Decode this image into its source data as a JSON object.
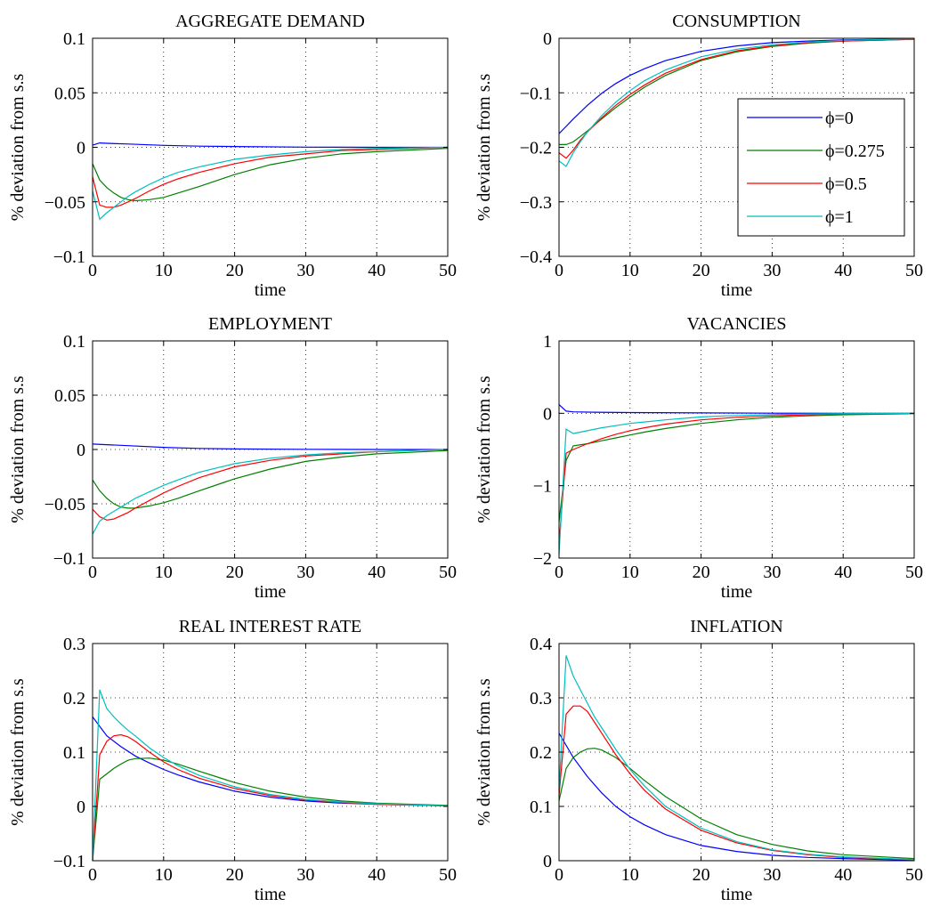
{
  "colors": {
    "phi0": "#0000ff",
    "phi0275": "#007f00",
    "phi05": "#ff0000",
    "phi1": "#00bfbf"
  },
  "legend_labels": [
    "ϕ=0",
    "ϕ=0.275",
    "ϕ=0.5",
    "ϕ=1"
  ],
  "chart_data": [
    {
      "type": "line",
      "title": "AGGREGATE DEMAND",
      "xlabel": "time",
      "ylabel": "% deviation from s.s",
      "xlim": [
        0,
        50
      ],
      "ylim": [
        -0.1,
        0.1
      ],
      "xticks": [
        0,
        10,
        20,
        30,
        40,
        50
      ],
      "yticks": [
        -0.1,
        -0.05,
        0,
        0.05,
        0.1
      ],
      "ytick_labels": [
        "−0.1",
        "−0.05",
        "0",
        "0.05",
        "0.1"
      ],
      "grid": true,
      "series": [
        {
          "name": "ϕ=0",
          "x": [
            0,
            1,
            2,
            5,
            10,
            15,
            20,
            30,
            40,
            50
          ],
          "y": [
            0.002,
            0.004,
            0.0037,
            0.003,
            0.0018,
            0.0011,
            0.0007,
            0.0002,
            0.0,
            0.0
          ]
        },
        {
          "name": "ϕ=0.275",
          "x": [
            0,
            1,
            2,
            3,
            4,
            5,
            6,
            8,
            10,
            12,
            15,
            20,
            25,
            30,
            35,
            40,
            50
          ],
          "y": [
            -0.015,
            -0.03,
            -0.037,
            -0.042,
            -0.046,
            -0.048,
            -0.049,
            -0.048,
            -0.046,
            -0.042,
            -0.036,
            -0.025,
            -0.016,
            -0.01,
            -0.006,
            -0.004,
            -0.001
          ]
        },
        {
          "name": "ϕ=0.5",
          "x": [
            0,
            1,
            2,
            3,
            4,
            5,
            6,
            8,
            10,
            12,
            15,
            20,
            25,
            30,
            35,
            40,
            50
          ],
          "y": [
            -0.027,
            -0.053,
            -0.055,
            -0.055,
            -0.053,
            -0.05,
            -0.047,
            -0.04,
            -0.034,
            -0.029,
            -0.023,
            -0.015,
            -0.009,
            -0.006,
            -0.003,
            -0.002,
            0.0
          ]
        },
        {
          "name": "ϕ=1",
          "x": [
            0,
            1,
            2,
            3,
            4,
            5,
            6,
            8,
            10,
            12,
            15,
            20,
            25,
            30,
            35,
            40,
            50
          ],
          "y": [
            -0.04,
            -0.066,
            -0.06,
            -0.055,
            -0.05,
            -0.045,
            -0.041,
            -0.034,
            -0.028,
            -0.023,
            -0.018,
            -0.011,
            -0.007,
            -0.004,
            -0.002,
            -0.001,
            0.0
          ]
        }
      ]
    },
    {
      "type": "line",
      "title": "CONSUMPTION",
      "xlabel": "time",
      "ylabel": "% deviation from s.s",
      "xlim": [
        0,
        50
      ],
      "ylim": [
        -0.4,
        0
      ],
      "xticks": [
        0,
        10,
        20,
        30,
        40,
        50
      ],
      "yticks": [
        -0.4,
        -0.3,
        -0.2,
        -0.1,
        0
      ],
      "ytick_labels": [
        "−0.4",
        "−0.3",
        "−0.2",
        "−0.1",
        "0"
      ],
      "grid": true,
      "legend": "right",
      "series": [
        {
          "name": "ϕ=0",
          "x": [
            0,
            2,
            4,
            6,
            8,
            10,
            12,
            15,
            20,
            25,
            30,
            35,
            40,
            50
          ],
          "y": [
            -0.175,
            -0.148,
            -0.123,
            -0.101,
            -0.083,
            -0.068,
            -0.056,
            -0.041,
            -0.024,
            -0.014,
            -0.008,
            -0.005,
            -0.003,
            -0.001
          ]
        },
        {
          "name": "ϕ=0.275",
          "x": [
            0,
            1,
            2,
            3,
            4,
            6,
            8,
            10,
            12,
            15,
            20,
            25,
            30,
            35,
            40,
            50
          ],
          "y": [
            -0.195,
            -0.195,
            -0.19,
            -0.18,
            -0.17,
            -0.148,
            -0.127,
            -0.108,
            -0.09,
            -0.068,
            -0.041,
            -0.025,
            -0.015,
            -0.009,
            -0.005,
            -0.002
          ]
        },
        {
          "name": "ϕ=0.5",
          "x": [
            0,
            1,
            2,
            3,
            4,
            6,
            8,
            10,
            12,
            15,
            20,
            25,
            30,
            35,
            40,
            50
          ],
          "y": [
            -0.21,
            -0.22,
            -0.205,
            -0.187,
            -0.172,
            -0.146,
            -0.123,
            -0.103,
            -0.086,
            -0.064,
            -0.039,
            -0.023,
            -0.014,
            -0.008,
            -0.005,
            -0.002
          ]
        },
        {
          "name": "ϕ=1",
          "x": [
            0,
            1,
            2,
            3,
            4,
            6,
            8,
            10,
            12,
            15,
            20,
            25,
            30,
            35,
            40,
            50
          ],
          "y": [
            -0.225,
            -0.235,
            -0.21,
            -0.19,
            -0.172,
            -0.142,
            -0.117,
            -0.096,
            -0.078,
            -0.058,
            -0.034,
            -0.02,
            -0.012,
            -0.007,
            -0.004,
            -0.001
          ]
        }
      ]
    },
    {
      "type": "line",
      "title": "EMPLOYMENT",
      "xlabel": "time",
      "ylabel": "% deviation from s.s",
      "xlim": [
        0,
        50
      ],
      "ylim": [
        -0.1,
        0.1
      ],
      "xticks": [
        0,
        10,
        20,
        30,
        40,
        50
      ],
      "yticks": [
        -0.1,
        -0.05,
        0,
        0.05,
        0.1
      ],
      "ytick_labels": [
        "−0.1",
        "−0.05",
        "0",
        "0.05",
        "0.1"
      ],
      "grid": true,
      "series": [
        {
          "name": "ϕ=0",
          "x": [
            0,
            5,
            10,
            15,
            20,
            30,
            40,
            50
          ],
          "y": [
            0.005,
            0.0035,
            0.002,
            0.001,
            0.0005,
            0.0002,
            0.0,
            0.0
          ]
        },
        {
          "name": "ϕ=0.275",
          "x": [
            0,
            1,
            2,
            3,
            4,
            5,
            6,
            8,
            10,
            12,
            15,
            20,
            25,
            30,
            35,
            40,
            50
          ],
          "y": [
            -0.028,
            -0.038,
            -0.045,
            -0.05,
            -0.053,
            -0.054,
            -0.054,
            -0.052,
            -0.049,
            -0.045,
            -0.038,
            -0.027,
            -0.018,
            -0.011,
            -0.007,
            -0.004,
            -0.001
          ]
        },
        {
          "name": "ϕ=0.5",
          "x": [
            0,
            1,
            2,
            3,
            4,
            5,
            6,
            8,
            10,
            12,
            15,
            20,
            25,
            30,
            35,
            40,
            50
          ],
          "y": [
            -0.055,
            -0.062,
            -0.065,
            -0.064,
            -0.061,
            -0.058,
            -0.054,
            -0.047,
            -0.04,
            -0.034,
            -0.026,
            -0.016,
            -0.01,
            -0.006,
            -0.004,
            -0.002,
            0.0
          ]
        },
        {
          "name": "ϕ=1",
          "x": [
            0,
            1,
            2,
            3,
            4,
            5,
            6,
            8,
            10,
            12,
            15,
            20,
            25,
            30,
            35,
            40,
            50
          ],
          "y": [
            -0.078,
            -0.066,
            -0.061,
            -0.057,
            -0.053,
            -0.049,
            -0.045,
            -0.039,
            -0.033,
            -0.028,
            -0.021,
            -0.013,
            -0.008,
            -0.005,
            -0.003,
            -0.002,
            0.0
          ]
        }
      ]
    },
    {
      "type": "line",
      "title": "VACANCIES",
      "xlabel": "time",
      "ylabel": "% deviation from s.s",
      "xlim": [
        0,
        50
      ],
      "ylim": [
        -2,
        1
      ],
      "xticks": [
        0,
        10,
        20,
        30,
        40,
        50
      ],
      "yticks": [
        -2,
        -1,
        0,
        1
      ],
      "ytick_labels": [
        "−2",
        "−1",
        "0",
        "1"
      ],
      "grid": true,
      "series": [
        {
          "name": "ϕ=0",
          "x": [
            0,
            1,
            2,
            5,
            10,
            20,
            30,
            40,
            50
          ],
          "y": [
            0.12,
            0.03,
            0.02,
            0.015,
            0.01,
            0.005,
            0.002,
            0.0,
            0.0
          ]
        },
        {
          "name": "ϕ=0.275",
          "x": [
            0,
            1,
            2,
            4,
            6,
            8,
            10,
            12,
            15,
            20,
            25,
            30,
            35,
            40,
            50
          ],
          "y": [
            -1.5,
            -0.65,
            -0.45,
            -0.42,
            -0.38,
            -0.34,
            -0.3,
            -0.26,
            -0.21,
            -0.14,
            -0.09,
            -0.055,
            -0.035,
            -0.02,
            -0.005
          ]
        },
        {
          "name": "ϕ=0.5",
          "x": [
            0,
            1,
            2,
            4,
            6,
            8,
            10,
            12,
            15,
            20,
            25,
            30,
            35,
            40,
            50
          ],
          "y": [
            -1.8,
            -0.55,
            -0.5,
            -0.42,
            -0.35,
            -0.29,
            -0.24,
            -0.2,
            -0.15,
            -0.09,
            -0.055,
            -0.035,
            -0.02,
            -0.01,
            -0.003
          ]
        },
        {
          "name": "ϕ=1",
          "x": [
            0,
            1,
            2,
            3,
            4,
            6,
            8,
            10,
            12,
            15,
            20,
            25,
            30,
            35,
            40,
            50
          ],
          "y": [
            -1.95,
            -0.22,
            -0.28,
            -0.26,
            -0.24,
            -0.2,
            -0.17,
            -0.14,
            -0.12,
            -0.09,
            -0.05,
            -0.03,
            -0.018,
            -0.01,
            -0.005,
            -0.001
          ]
        }
      ]
    },
    {
      "type": "line",
      "title": "REAL INTEREST RATE",
      "xlabel": "time",
      "ylabel": "% deviation from s.s",
      "xlim": [
        0,
        50
      ],
      "ylim": [
        -0.1,
        0.3
      ],
      "xticks": [
        0,
        10,
        20,
        30,
        40,
        50
      ],
      "yticks": [
        -0.1,
        0,
        0.1,
        0.2,
        0.3
      ],
      "ytick_labels": [
        "−0.1",
        "0",
        "0.1",
        "0.2",
        "0.3"
      ],
      "grid": true,
      "series": [
        {
          "name": "ϕ=0",
          "x": [
            0,
            2,
            4,
            6,
            8,
            10,
            12,
            15,
            20,
            25,
            30,
            35,
            40,
            50
          ],
          "y": [
            0.165,
            0.13,
            0.11,
            0.093,
            0.08,
            0.068,
            0.058,
            0.045,
            0.028,
            0.017,
            0.01,
            0.006,
            0.004,
            0.001
          ]
        },
        {
          "name": "ϕ=0.275",
          "x": [
            0,
            1,
            2,
            3,
            4,
            5,
            6,
            8,
            10,
            12,
            15,
            20,
            25,
            30,
            35,
            40,
            50
          ],
          "y": [
            -0.1,
            0.05,
            0.06,
            0.07,
            0.078,
            0.085,
            0.088,
            0.089,
            0.085,
            0.078,
            0.065,
            0.044,
            0.028,
            0.017,
            0.01,
            0.006,
            0.002
          ]
        },
        {
          "name": "ϕ=0.5",
          "x": [
            0,
            1,
            2,
            3,
            4,
            5,
            6,
            8,
            10,
            12,
            15,
            20,
            25,
            30,
            35,
            40,
            50
          ],
          "y": [
            -0.1,
            0.095,
            0.12,
            0.13,
            0.132,
            0.128,
            0.12,
            0.1,
            0.082,
            0.068,
            0.052,
            0.033,
            0.02,
            0.012,
            0.007,
            0.004,
            0.001
          ]
        },
        {
          "name": "ϕ=1",
          "x": [
            0,
            1,
            2,
            3,
            4,
            5,
            6,
            8,
            10,
            12,
            15,
            20,
            25,
            30,
            35,
            40,
            50
          ],
          "y": [
            -0.1,
            0.215,
            0.18,
            0.165,
            0.152,
            0.14,
            0.13,
            0.108,
            0.09,
            0.075,
            0.057,
            0.036,
            0.022,
            0.013,
            0.008,
            0.005,
            0.001
          ]
        }
      ]
    },
    {
      "type": "line",
      "title": "INFLATION",
      "xlabel": "time",
      "ylabel": "% deviation from s.s",
      "xlim": [
        0,
        50
      ],
      "ylim": [
        0,
        0.4
      ],
      "xticks": [
        0,
        10,
        20,
        30,
        40,
        50
      ],
      "yticks": [
        0,
        0.1,
        0.2,
        0.3,
        0.4
      ],
      "ytick_labels": [
        "0",
        "0.1",
        "0.2",
        "0.3",
        "0.4"
      ],
      "grid": true,
      "series": [
        {
          "name": "ϕ=0",
          "x": [
            0,
            2,
            4,
            6,
            8,
            10,
            12,
            15,
            20,
            25,
            30,
            35,
            40,
            50
          ],
          "y": [
            0.235,
            0.19,
            0.155,
            0.125,
            0.1,
            0.081,
            0.066,
            0.048,
            0.028,
            0.017,
            0.01,
            0.006,
            0.004,
            0.001
          ]
        },
        {
          "name": "ϕ=0.275",
          "x": [
            0,
            1,
            2,
            3,
            4,
            5,
            6,
            8,
            10,
            12,
            15,
            20,
            25,
            30,
            35,
            40,
            50
          ],
          "y": [
            0.11,
            0.17,
            0.19,
            0.2,
            0.206,
            0.207,
            0.204,
            0.19,
            0.17,
            0.148,
            0.118,
            0.077,
            0.048,
            0.03,
            0.018,
            0.011,
            0.004
          ]
        },
        {
          "name": "ϕ=0.5",
          "x": [
            0,
            1,
            2,
            3,
            4,
            5,
            6,
            8,
            10,
            12,
            15,
            20,
            25,
            30,
            35,
            40,
            50
          ],
          "y": [
            0.12,
            0.27,
            0.285,
            0.285,
            0.275,
            0.255,
            0.235,
            0.195,
            0.16,
            0.13,
            0.095,
            0.056,
            0.033,
            0.019,
            0.011,
            0.006,
            0.002
          ]
        },
        {
          "name": "ϕ=1",
          "x": [
            0,
            1,
            2,
            3,
            4,
            5,
            6,
            8,
            10,
            12,
            15,
            20,
            25,
            30,
            35,
            40,
            50
          ],
          "y": [
            0.13,
            0.378,
            0.34,
            0.315,
            0.29,
            0.265,
            0.245,
            0.205,
            0.168,
            0.138,
            0.1,
            0.06,
            0.035,
            0.02,
            0.012,
            0.007,
            0.002
          ]
        }
      ]
    }
  ]
}
